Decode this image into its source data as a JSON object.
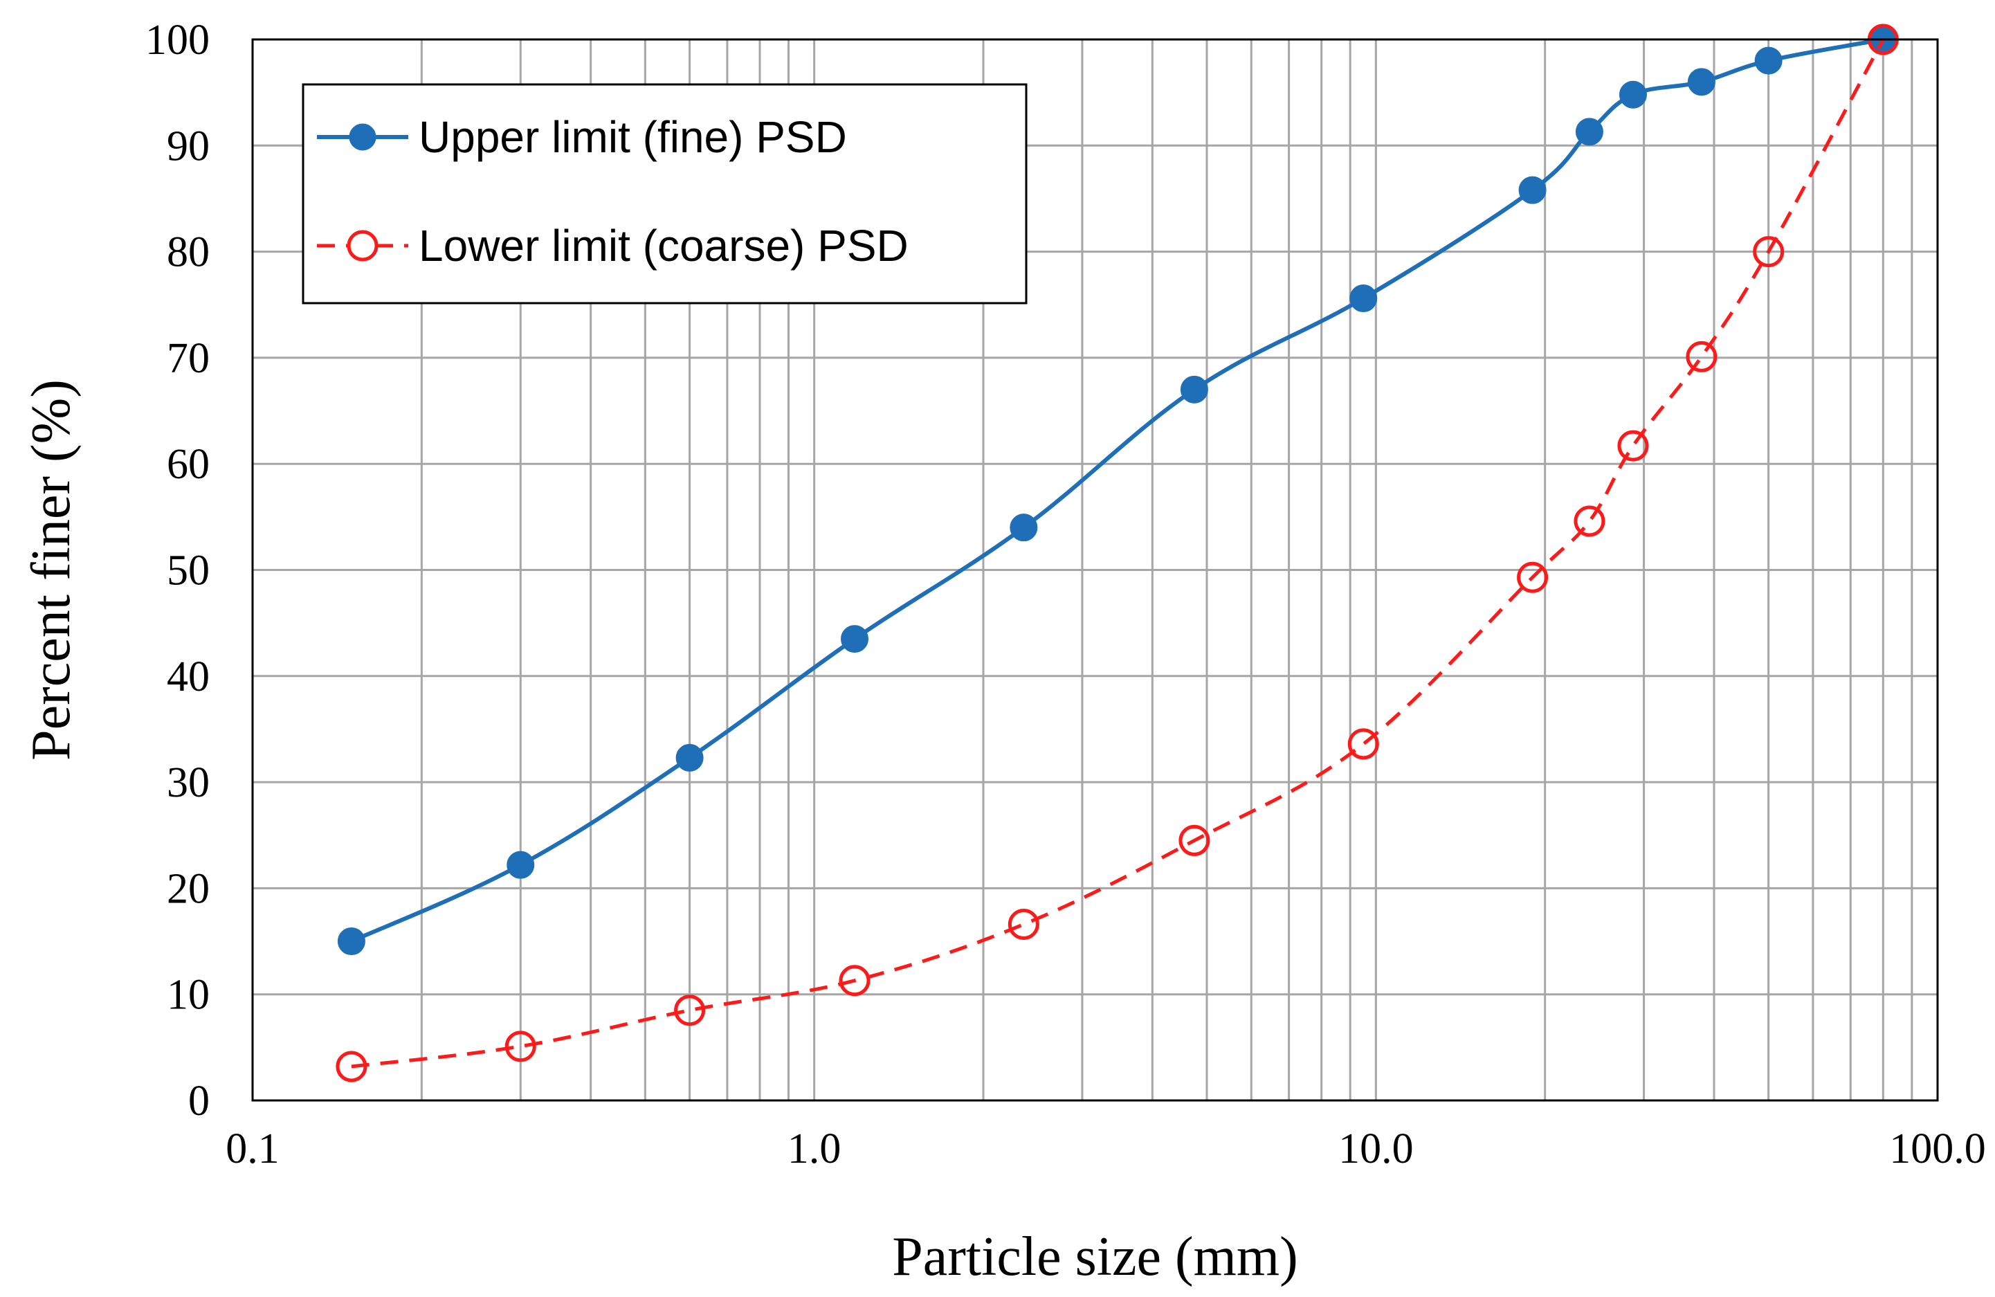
{
  "chart_data": {
    "type": "line",
    "title": "",
    "xlabel": "Particle size (mm)",
    "ylabel": "Percent finer (%)",
    "xscale": "log",
    "xlim": [
      0.1,
      100
    ],
    "ylim": [
      0,
      100
    ],
    "grid": true,
    "legend_position": "top-left",
    "x_ticks": [
      {
        "value": 0.1,
        "label": "0.1"
      },
      {
        "value": 1,
        "label": "1.0"
      },
      {
        "value": 10,
        "label": "10.0"
      },
      {
        "value": 100,
        "label": "100.0"
      }
    ],
    "y_ticks": [
      {
        "value": 0,
        "label": "0"
      },
      {
        "value": 10,
        "label": "10"
      },
      {
        "value": 20,
        "label": "20"
      },
      {
        "value": 30,
        "label": "30"
      },
      {
        "value": 40,
        "label": "40"
      },
      {
        "value": 50,
        "label": "50"
      },
      {
        "value": 60,
        "label": "60"
      },
      {
        "value": 70,
        "label": "70"
      },
      {
        "value": 80,
        "label": "80"
      },
      {
        "value": 90,
        "label": "90"
      },
      {
        "value": 100,
        "label": "100"
      }
    ],
    "series": [
      {
        "name": "Upper limit (fine) PSD",
        "color": "#1F6FB8",
        "line_style": "solid",
        "marker": "filled-circle",
        "x": [
          0.15,
          0.3,
          0.6,
          1.18,
          2.36,
          4.75,
          9.5,
          19,
          24,
          28.7,
          38,
          50,
          80
        ],
        "y": [
          15,
          22.2,
          32.3,
          43.5,
          54,
          67,
          75.6,
          85.8,
          91.3,
          94.8,
          96,
          98,
          100
        ]
      },
      {
        "name": "Lower limit (coarse) PSD",
        "color": "#FF1A1A",
        "line_style": "dashed",
        "marker": "open-circle",
        "x": [
          0.15,
          0.3,
          0.6,
          1.18,
          2.36,
          4.75,
          9.5,
          19,
          24,
          28.7,
          38,
          50,
          80
        ],
        "y": [
          3.2,
          5.1,
          8.5,
          11.3,
          16.6,
          24.5,
          33.6,
          49.3,
          54.6,
          61.7,
          70.1,
          80,
          100
        ]
      }
    ]
  }
}
